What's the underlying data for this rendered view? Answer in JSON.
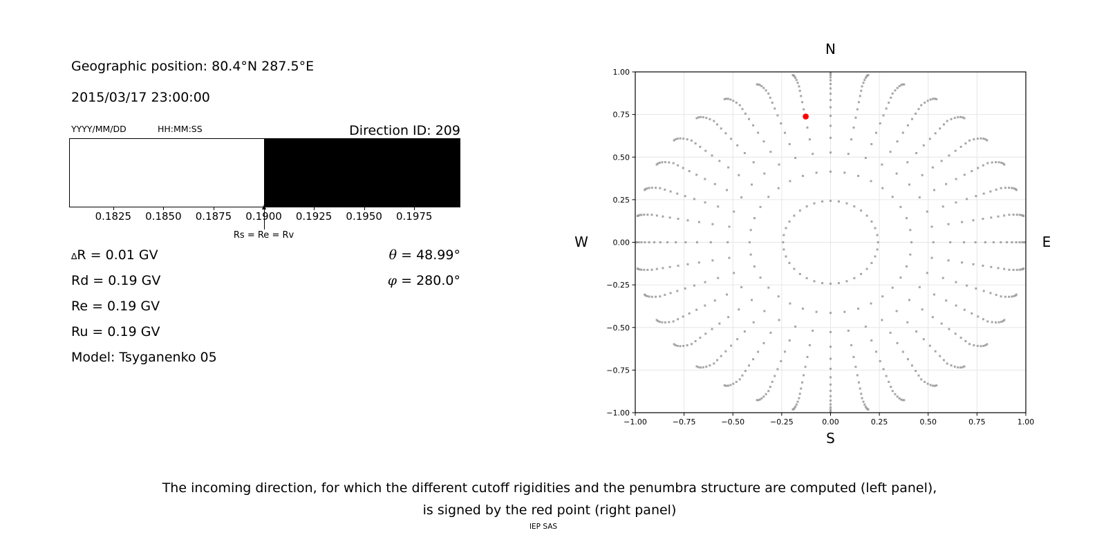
{
  "info_panel": {
    "geo_position": "Geographic position: 80.4°N 287.5°E",
    "datetime": "2015/03/17 23:00:00",
    "date_format_label": "YYYY/MM/DD",
    "time_format_label": "HH:MM:SS",
    "direction_id": "Direction ID: 209",
    "values": {
      "delta_symbol": "∆",
      "delta_r_rest": "R = 0.01 GV",
      "rd": "Rd = 0.19 GV",
      "re": "Re = 0.19 GV",
      "ru": "Ru = 0.19 GV",
      "model": "Model: Tsyganenko 05",
      "theta_symbol": "θ",
      "theta_rest": " = 48.99°",
      "phi_symbol": "φ",
      "phi_rest": " = 280.0°"
    }
  },
  "chart_data": [
    {
      "type": "bar",
      "name": "penumbra-structure",
      "xmin": 0.1803,
      "xmax": 0.1998,
      "segments": [
        {
          "from": 0.1803,
          "to": 0.19,
          "color": "#ffffff",
          "label": "allowed"
        },
        {
          "from": 0.19,
          "to": 0.1998,
          "color": "#000000",
          "label": "forbidden"
        }
      ],
      "xticks": [
        0.1825,
        0.185,
        0.1875,
        0.19,
        0.1925,
        0.195,
        0.1975
      ],
      "xtick_labels": [
        "0.1825",
        "0.1850",
        "0.1875",
        "0.1900",
        "0.1925",
        "0.1950",
        "0.1975"
      ],
      "annotation": {
        "text": "Rs = Re = Rv",
        "x": 0.19
      }
    },
    {
      "type": "scatter",
      "name": "incoming-direction-sky-map",
      "xlim": [
        -1.0,
        1.0
      ],
      "ylim": [
        -1.0,
        1.0
      ],
      "xticks": [
        -1.0,
        -0.75,
        -0.5,
        -0.25,
        0.0,
        0.25,
        0.5,
        0.75,
        1.0
      ],
      "yticks": [
        1.0,
        0.75,
        0.5,
        0.25,
        0.0,
        -0.25,
        -0.5,
        -0.75,
        -1.0
      ],
      "xtick_labels": [
        "−1.00",
        "−0.75",
        "−0.50",
        "−0.25",
        "0.00",
        "0.25",
        "0.50",
        "0.75",
        "1.00"
      ],
      "ytick_labels": [
        "1.00",
        "0.75",
        "0.50",
        "0.25",
        "0.00",
        "−0.25",
        "−0.50",
        "−0.75",
        "−1.00"
      ],
      "compass": {
        "top": "N",
        "right": "E",
        "bottom": "S",
        "left": "W"
      },
      "grid": true,
      "grid_color": "#e6e6e6",
      "dot_color": "#9a9a9a",
      "direction_grid": {
        "azimuth_start_deg": 0,
        "azimuth_step_deg": 10,
        "azimuth_count": 36,
        "cos_zenith_start": 0.97,
        "cos_zenith_step": 0.06,
        "rings": 17,
        "tip_bend_deg_per_ring": 0.55,
        "bend_start_ring": 11
      },
      "red_point": {
        "x": -0.127,
        "y": 0.738,
        "color": "#ff0000"
      }
    }
  ],
  "caption": {
    "line1": "The incoming direction, for which the different cutoff rigidities and the penumbra structure are computed (left panel),",
    "line2": "is signed by the red point (right panel)"
  },
  "credit": "IEP SAS"
}
